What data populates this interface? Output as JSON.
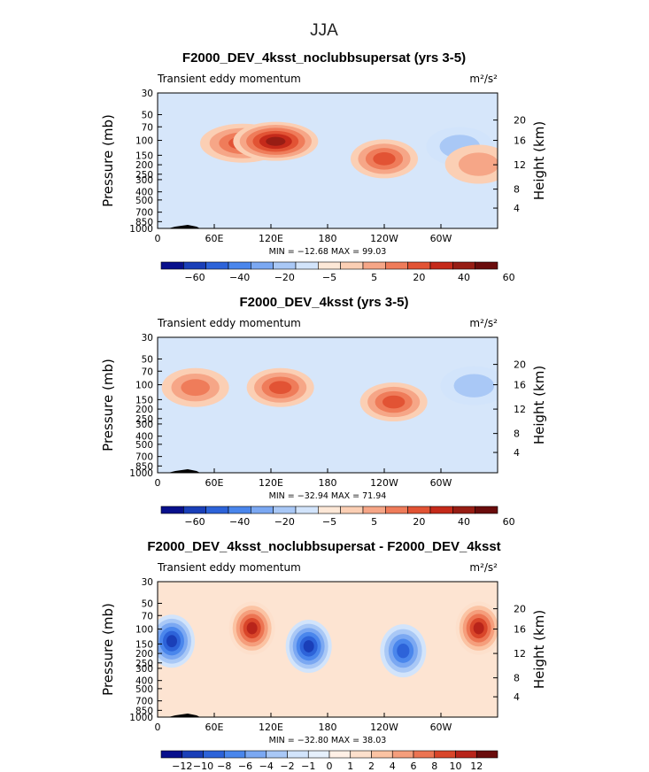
{
  "figure": {
    "title": "JJA"
  },
  "chart_data": [
    {
      "type": "heatmap",
      "title": "F2000_DEV_4ksst_noclubbsupersat (yrs 3-5)",
      "subtitle": "Transient eddy momentum",
      "units": "m²/s²",
      "ylabel": "Pressure (mb)",
      "y2label": "Height (km)",
      "xticks": [
        "0",
        "60E",
        "120E",
        "180",
        "120W",
        "60W"
      ],
      "yticks": [
        "30",
        "50",
        "70",
        "100",
        "150",
        "200",
        "250",
        "300",
        "400",
        "500",
        "700",
        "850",
        "1000"
      ],
      "y2ticks": [
        "20",
        "16",
        "12",
        "8",
        "4"
      ],
      "stats": "MIN = −12.68   MAX =  99.03",
      "colorbar_labels": [
        "−60",
        "−40",
        "−20",
        "−5",
        "5",
        "20",
        "40",
        "60"
      ],
      "features": [
        {
          "lon": 90,
          "p": 110,
          "value": 60
        },
        {
          "lon": 125,
          "p": 105,
          "value": 95
        },
        {
          "lon": 240,
          "p": 165,
          "value": 65
        },
        {
          "lon": 320,
          "p": 120,
          "value": -12
        },
        {
          "lon": 340,
          "p": 190,
          "value": 30
        }
      ]
    },
    {
      "type": "heatmap",
      "title": "F2000_DEV_4ksst (yrs 3-5)",
      "subtitle": "Transient eddy momentum",
      "units": "m²/s²",
      "ylabel": "Pressure (mb)",
      "y2label": "Height (km)",
      "xticks": [
        "0",
        "60E",
        "120E",
        "180",
        "120W",
        "60W"
      ],
      "yticks": [
        "30",
        "50",
        "70",
        "100",
        "150",
        "200",
        "250",
        "300",
        "400",
        "500",
        "700",
        "850",
        "1000"
      ],
      "y2ticks": [
        "20",
        "16",
        "12",
        "8",
        "4"
      ],
      "stats": "MIN = −32.94   MAX =  71.94",
      "colorbar_labels": [
        "−60",
        "−40",
        "−20",
        "−5",
        "5",
        "20",
        "40",
        "60"
      ],
      "features": [
        {
          "lon": 40,
          "p": 110,
          "value": 45
        },
        {
          "lon": 130,
          "p": 110,
          "value": 70
        },
        {
          "lon": 250,
          "p": 160,
          "value": 65
        },
        {
          "lon": 335,
          "p": 105,
          "value": -30
        }
      ]
    },
    {
      "type": "heatmap",
      "title": "F2000_DEV_4ksst_noclubbsupersat - F2000_DEV_4ksst",
      "subtitle": "Transient eddy momentum",
      "units": "m²/s²",
      "ylabel": "Pressure (mb)",
      "y2label": "Height (km)",
      "xticks": [
        "0",
        "60E",
        "120E",
        "180",
        "120W",
        "60W"
      ],
      "yticks": [
        "30",
        "50",
        "70",
        "100",
        "150",
        "200",
        "250",
        "300",
        "400",
        "500",
        "700",
        "850",
        "1000"
      ],
      "y2ticks": [
        "20",
        "16",
        "12",
        "8",
        "4"
      ],
      "stats": "MIN = −32.80   MAX =  38.03",
      "colorbar_labels": [
        "−12",
        "−10",
        "−8",
        "−6",
        "−4",
        "−2",
        "−1",
        "0",
        "1",
        "2",
        "4",
        "6",
        "8",
        "10",
        "12"
      ],
      "features": [
        {
          "lon": 15,
          "p": 140,
          "value": -14
        },
        {
          "lon": 100,
          "p": 100,
          "value": 14
        },
        {
          "lon": 160,
          "p": 160,
          "value": -14
        },
        {
          "lon": 260,
          "p": 180,
          "value": -12
        },
        {
          "lon": 340,
          "p": 100,
          "value": 14
        }
      ]
    }
  ]
}
